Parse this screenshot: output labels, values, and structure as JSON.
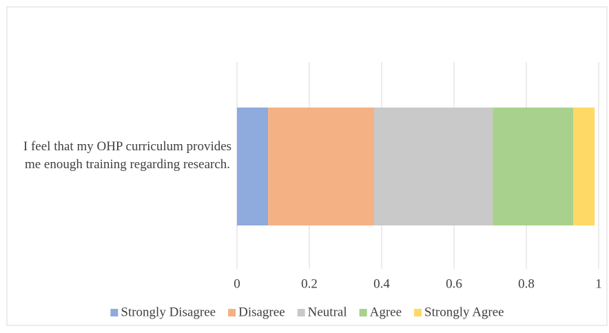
{
  "chart_data": {
    "type": "bar",
    "orientation": "horizontal",
    "stacked": true,
    "categories": [
      "I feel that my OHP curriculum provides me enough training regarding research."
    ],
    "series": [
      {
        "name": "Strongly Disagree",
        "color": "#8faadc",
        "values": [
          0.086
        ]
      },
      {
        "name": "Disagree",
        "color": "#f4b183",
        "values": [
          0.293
        ]
      },
      {
        "name": "Neutral",
        "color": "#c9c9c9",
        "values": [
          0.328
        ]
      },
      {
        "name": "Agree",
        "color": "#a9d18e",
        "values": [
          0.223
        ]
      },
      {
        "name": "Strongly Agree",
        "color": "#ffd966",
        "values": [
          0.059
        ]
      }
    ],
    "xlim": [
      0,
      1
    ],
    "xticks": [
      0,
      0.2,
      0.4,
      0.6,
      0.8,
      1
    ],
    "grid": true,
    "legend": "bottom"
  }
}
